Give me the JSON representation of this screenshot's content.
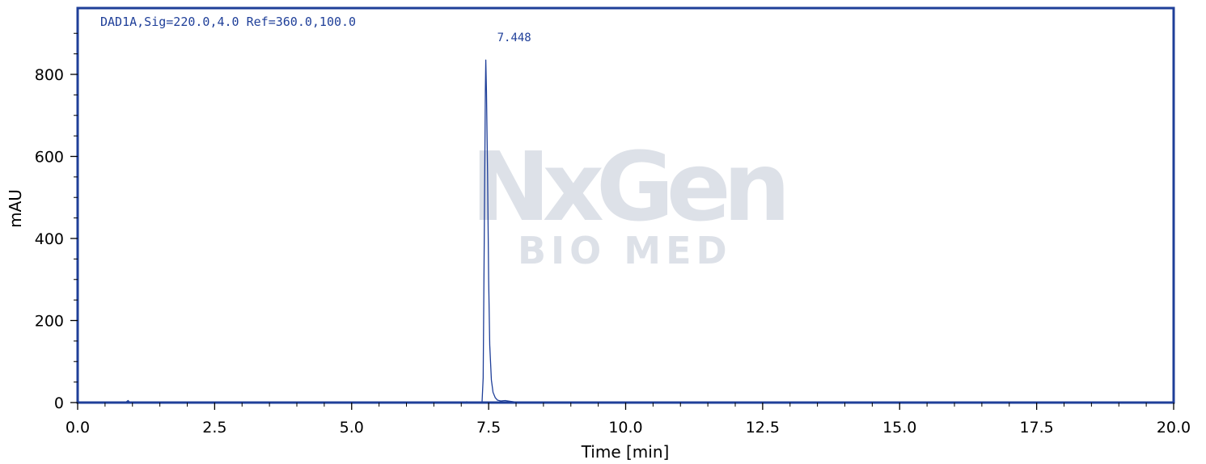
{
  "watermark": {
    "line1": "NxGen",
    "line2": "BIO MED"
  },
  "colors": {
    "trace": "#1f3f99",
    "frame": "#1f3f99",
    "watermark": "#dde1e8"
  },
  "chart_data": {
    "type": "line",
    "title": "",
    "signal_label": "DAD1A,Sig=220.0,4.0 Ref=360.0,100.0",
    "xlabel": "Time [min]",
    "ylabel": "mAU",
    "xlim": [
      0,
      20
    ],
    "ylim": [
      -10,
      960
    ],
    "xticks": [
      "0.0",
      "2.5",
      "5.0",
      "7.5",
      "10.0",
      "12.5",
      "15.0",
      "17.5",
      "20.0"
    ],
    "yticks": [
      "0",
      "200",
      "400",
      "600",
      "800"
    ],
    "grid": false,
    "peaks": [
      {
        "rt": "7.448",
        "x": 7.448,
        "height": 835
      }
    ],
    "series": [
      {
        "x": [
          0,
          0.5,
          0.8,
          0.88,
          0.92,
          0.95,
          1.0,
          1.5,
          2.5,
          4.0,
          5.4,
          5.5,
          6.2,
          6.4,
          6.5,
          7.0,
          7.1,
          7.2,
          7.35,
          7.38,
          7.4,
          7.42,
          7.44,
          7.448,
          7.46,
          7.48,
          7.5,
          7.52,
          7.55,
          7.58,
          7.62,
          7.66,
          7.72,
          7.8,
          7.9,
          8.0,
          8.5,
          10,
          12.5,
          15,
          17.5,
          20
        ],
        "y": [
          -1,
          -1,
          -1,
          1,
          5,
          1,
          -1,
          -1,
          -1,
          -1,
          -1,
          0,
          -1,
          1,
          -1,
          0,
          2,
          0,
          0,
          2,
          60,
          400,
          760,
          835,
          760,
          560,
          300,
          140,
          55,
          25,
          12,
          6,
          4,
          5,
          3,
          1,
          0,
          -1,
          -1,
          -1,
          -1,
          -1
        ]
      }
    ]
  }
}
